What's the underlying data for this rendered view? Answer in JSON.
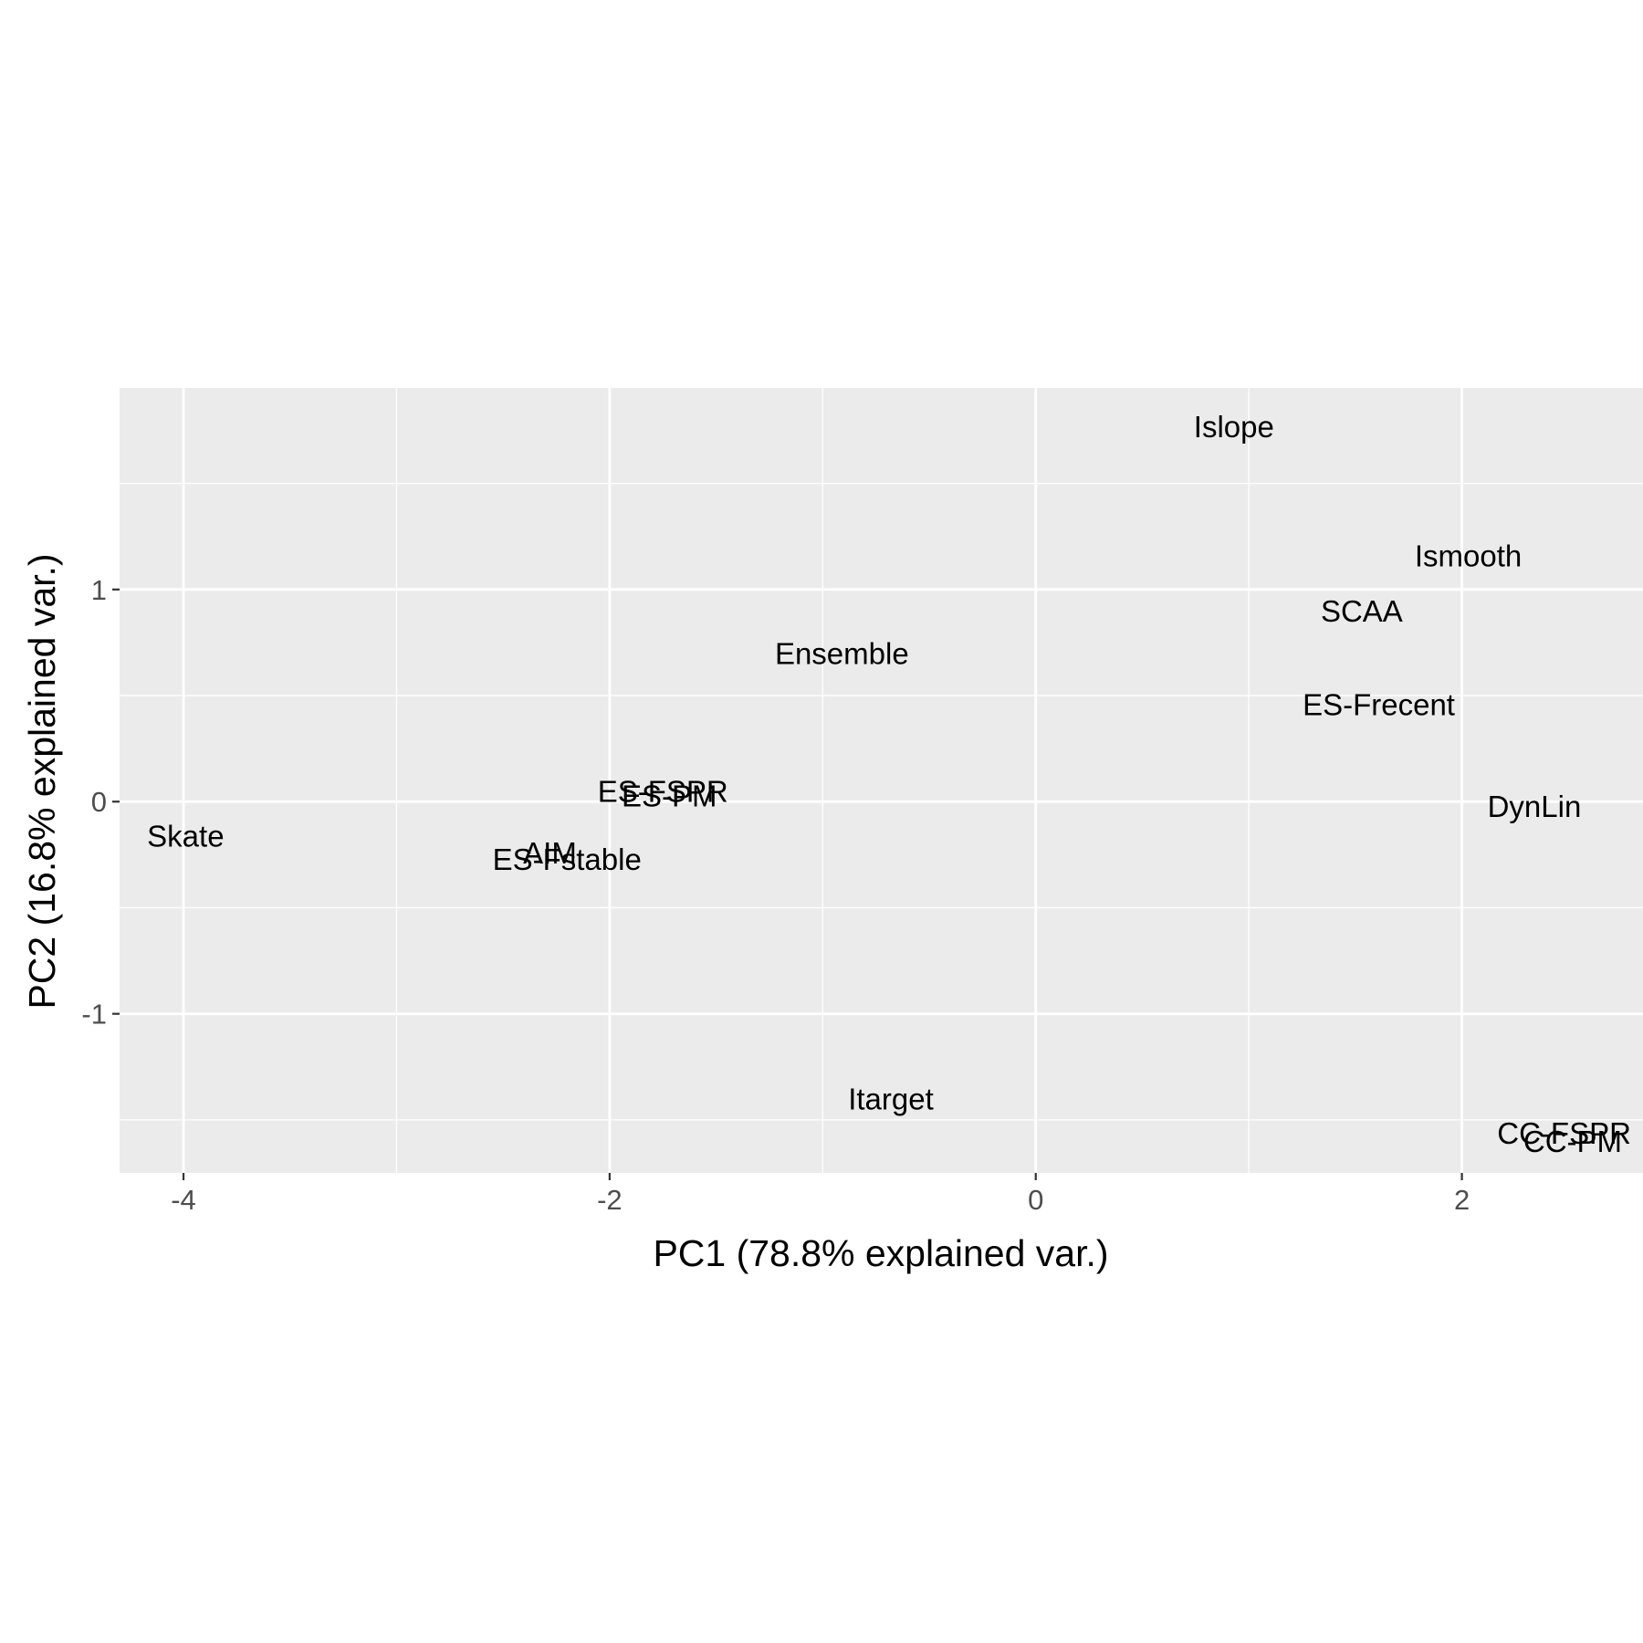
{
  "chart_data": {
    "type": "scatter",
    "xlabel": "PC1 (78.8% explained var.)",
    "ylabel": "PC2 (16.8% explained var.)",
    "xlim": [
      -4.3,
      2.85
    ],
    "ylim": [
      -1.75,
      1.95
    ],
    "x_major_ticks": [
      -4,
      -2,
      0,
      2
    ],
    "x_minor_ticks": [
      -3,
      -1,
      1
    ],
    "y_major_ticks": [
      -1,
      0,
      1
    ],
    "y_minor_ticks": [
      -1.5,
      -0.5,
      0.5,
      1.5
    ],
    "x_tick_labels": [
      "-4",
      "-2",
      "0",
      "2"
    ],
    "y_tick_labels": [
      "-1",
      "0",
      "1"
    ],
    "grid": true,
    "legend": "none",
    "colors": {
      "panel": "#ebebeb",
      "grid": "#ffffff",
      "tick_text": "#4d4d4d",
      "tick_mark": "#333333",
      "label_text": "#000000"
    },
    "points": [
      {
        "label": "Islope",
        "x": 0.93,
        "y": 1.77
      },
      {
        "label": "Ismooth",
        "x": 2.03,
        "y": 1.16
      },
      {
        "label": "SCAA",
        "x": 1.53,
        "y": 0.9
      },
      {
        "label": "Ensemble",
        "x": -0.91,
        "y": 0.7
      },
      {
        "label": "ES-Frecent",
        "x": 1.61,
        "y": 0.46
      },
      {
        "label": "ES-FSPR",
        "x": -1.75,
        "y": 0.05
      },
      {
        "label": "ES-PM",
        "x": -1.72,
        "y": 0.03
      },
      {
        "label": "DynLin",
        "x": 2.34,
        "y": -0.02
      },
      {
        "label": "Skate",
        "x": -3.99,
        "y": -0.16
      },
      {
        "label": "AIM",
        "x": -2.28,
        "y": -0.24
      },
      {
        "label": "ES-Fstable",
        "x": -2.2,
        "y": -0.27
      },
      {
        "label": "Itarget",
        "x": -0.68,
        "y": -1.4
      },
      {
        "label": "CC-FSPR",
        "x": 2.48,
        "y": -1.56
      },
      {
        "label": "CC-PM",
        "x": 2.52,
        "y": -1.6
      }
    ]
  }
}
